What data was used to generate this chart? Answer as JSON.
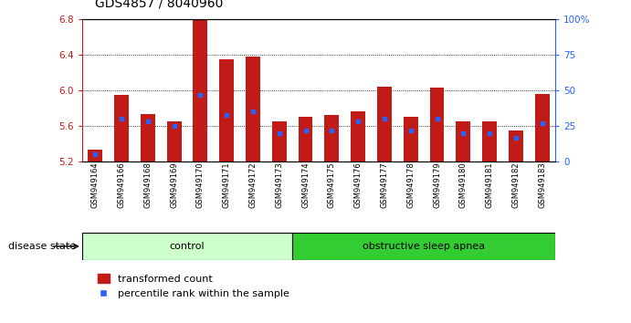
{
  "title": "GDS4857 / 8040960",
  "samples": [
    "GSM949164",
    "GSM949166",
    "GSM949168",
    "GSM949169",
    "GSM949170",
    "GSM949171",
    "GSM949172",
    "GSM949173",
    "GSM949174",
    "GSM949175",
    "GSM949176",
    "GSM949177",
    "GSM949178",
    "GSM949179",
    "GSM949180",
    "GSM949181",
    "GSM949182",
    "GSM949183"
  ],
  "bar_values": [
    5.33,
    5.95,
    5.73,
    5.65,
    6.8,
    6.35,
    6.38,
    5.65,
    5.7,
    5.72,
    5.76,
    6.04,
    5.7,
    6.03,
    5.65,
    5.65,
    5.55,
    5.96
  ],
  "percentile_pct": [
    5,
    30,
    28,
    25,
    47,
    33,
    35,
    20,
    22,
    22,
    28,
    30,
    22,
    30,
    20,
    20,
    17,
    27
  ],
  "ymin": 5.2,
  "ymax": 6.8,
  "yticks": [
    5.2,
    5.6,
    6.0,
    6.4,
    6.8
  ],
  "bar_color": "#C11B17",
  "blue_color": "#2962FF",
  "num_control": 8,
  "num_osa": 10,
  "control_color": "#CCFFCC",
  "osa_color": "#33CC33",
  "legend_transformed": "transformed count",
  "legend_percentile": "percentile rank within the sample",
  "disease_state_label": "disease state",
  "control_label": "control",
  "osa_label": "obstructive sleep apnea",
  "bar_width": 0.55
}
